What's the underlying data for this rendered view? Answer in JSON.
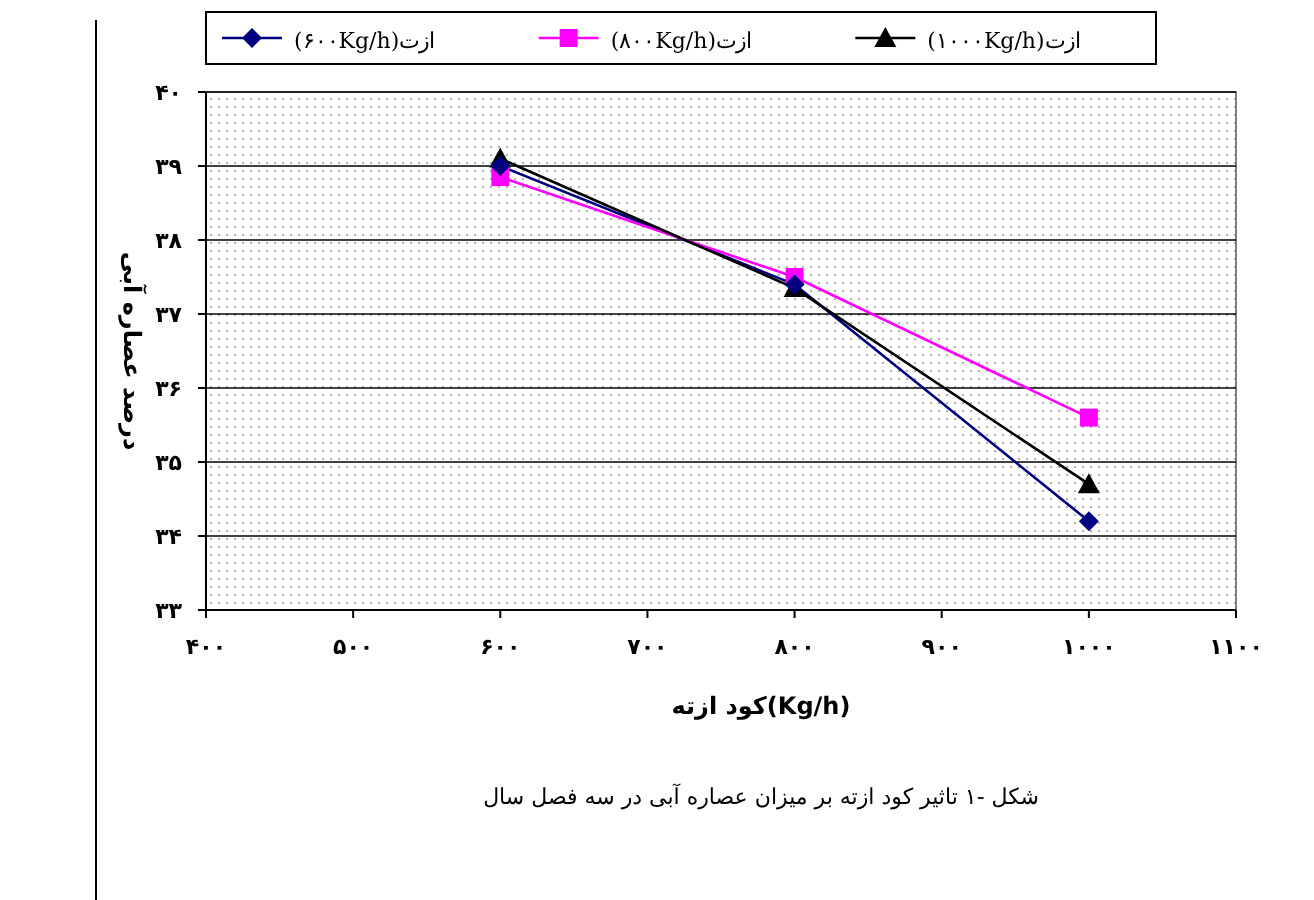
{
  "chart_data": {
    "type": "line",
    "xlabel": "کود ازته(Kg/h)",
    "ylabel": "درصد عصاره آبی",
    "x": [
      600,
      800,
      1000
    ],
    "series": [
      {
        "name": "ازت(۶۰۰Kg/h)",
        "color": "#000080",
        "marker": "diamond",
        "values": [
          39.0,
          37.4,
          34.2
        ]
      },
      {
        "name": "ازت(۸۰۰Kg/h)",
        "color": "#ff00ff",
        "marker": "square",
        "values": [
          38.85,
          37.5,
          35.6
        ]
      },
      {
        "name": "ازت(۱۰۰۰Kg/h)",
        "color": "#000000",
        "marker": "triangle",
        "values": [
          39.1,
          37.35,
          34.7
        ]
      }
    ],
    "xlim": [
      400,
      1100
    ],
    "xticks": [
      {
        "value": 400,
        "label": "۴۰۰"
      },
      {
        "value": 500,
        "label": "۵۰۰"
      },
      {
        "value": 600,
        "label": "۶۰۰"
      },
      {
        "value": 700,
        "label": "۷۰۰"
      },
      {
        "value": 800,
        "label": "۸۰۰"
      },
      {
        "value": 900,
        "label": "۹۰۰"
      },
      {
        "value": 1000,
        "label": "۱۰۰۰"
      },
      {
        "value": 1100,
        "label": "۱۱۰۰"
      }
    ],
    "ylim": [
      33,
      40
    ],
    "yticks": [
      {
        "value": 33,
        "label": "۳۳"
      },
      {
        "value": 34,
        "label": "۳۴"
      },
      {
        "value": 35,
        "label": "۳۵"
      },
      {
        "value": 36,
        "label": "۳۶"
      },
      {
        "value": 37,
        "label": "۳۷"
      },
      {
        "value": 38,
        "label": "۳۸"
      },
      {
        "value": 39,
        "label": "۳۹"
      },
      {
        "value": 40,
        "label": "۴۰"
      }
    ],
    "grid": "y",
    "legend": "top",
    "line_style": "solid",
    "annotations": [
      "شکل -۱ تاثیر کود ازته بر میزان عصاره آبی در سه فصل سال"
    ]
  }
}
